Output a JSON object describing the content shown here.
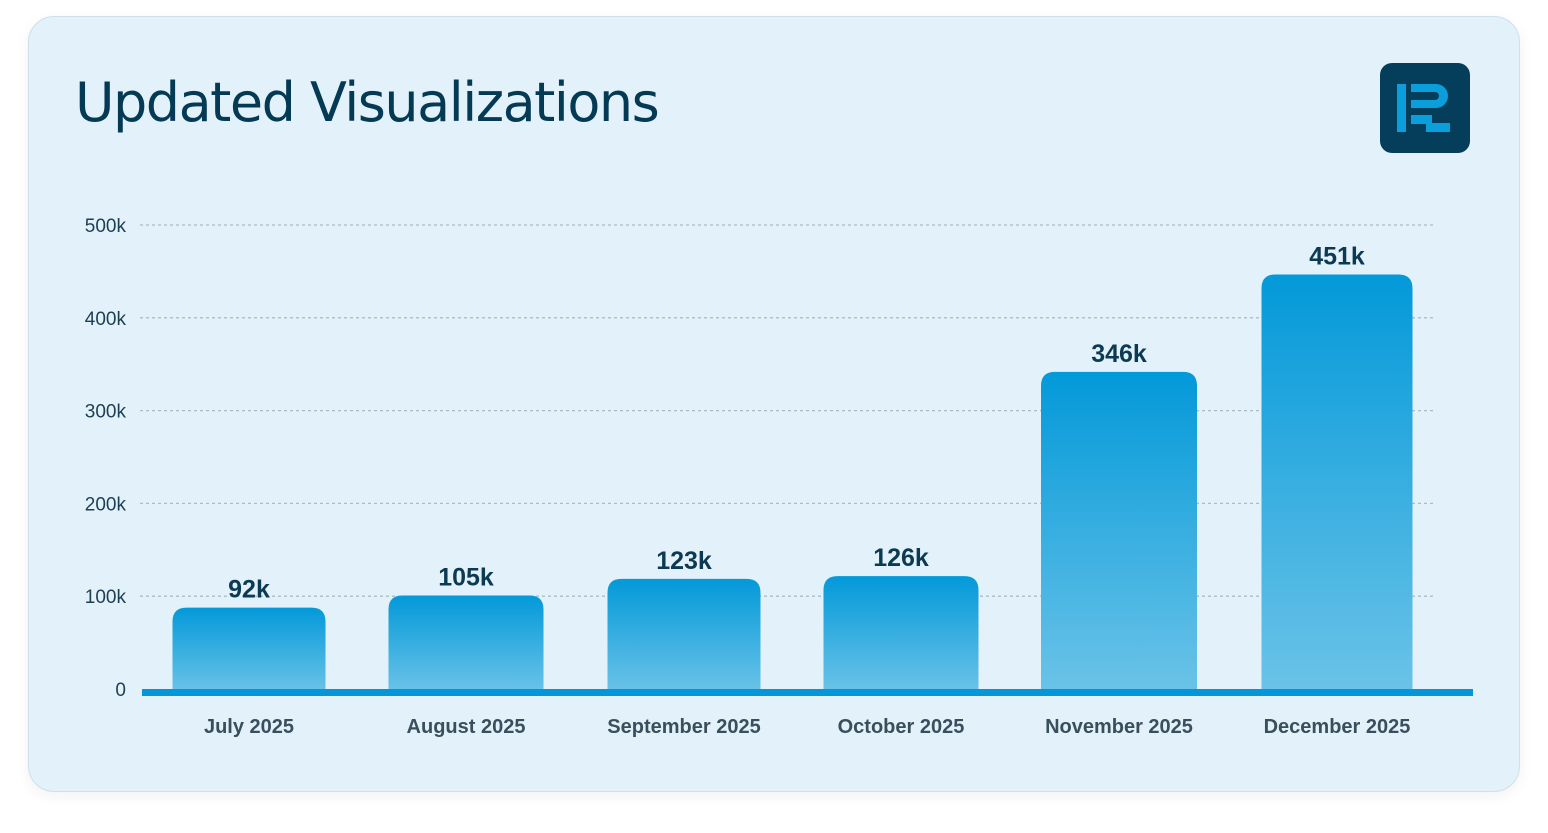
{
  "header": {
    "title": "Updated Visualizations"
  },
  "logo": {
    "icon": "r-brand-logo-icon",
    "bg_color": "#053e5a",
    "accent_color": "#0a9edb"
  },
  "chart_data": {
    "type": "bar",
    "categories": [
      "July 2025",
      "August 2025",
      "September 2025",
      "October 2025",
      "November 2025",
      "December 2025"
    ],
    "values": [
      92000,
      105000,
      123000,
      126000,
      346000,
      451000
    ],
    "data_labels": [
      "92k",
      "105k",
      "123k",
      "126k",
      "346k",
      "451k"
    ],
    "yticks": [
      0,
      100000,
      200000,
      300000,
      400000,
      500000
    ],
    "ytick_labels": [
      "0",
      "100k",
      "200k",
      "300k",
      "400k",
      "500k"
    ],
    "ylim": [
      0,
      500000
    ],
    "grid": true,
    "legend": "none",
    "bar_color_top": "#0399d9",
    "bar_color_bottom": "#6bc3e8",
    "axis_color": "#0596da"
  }
}
